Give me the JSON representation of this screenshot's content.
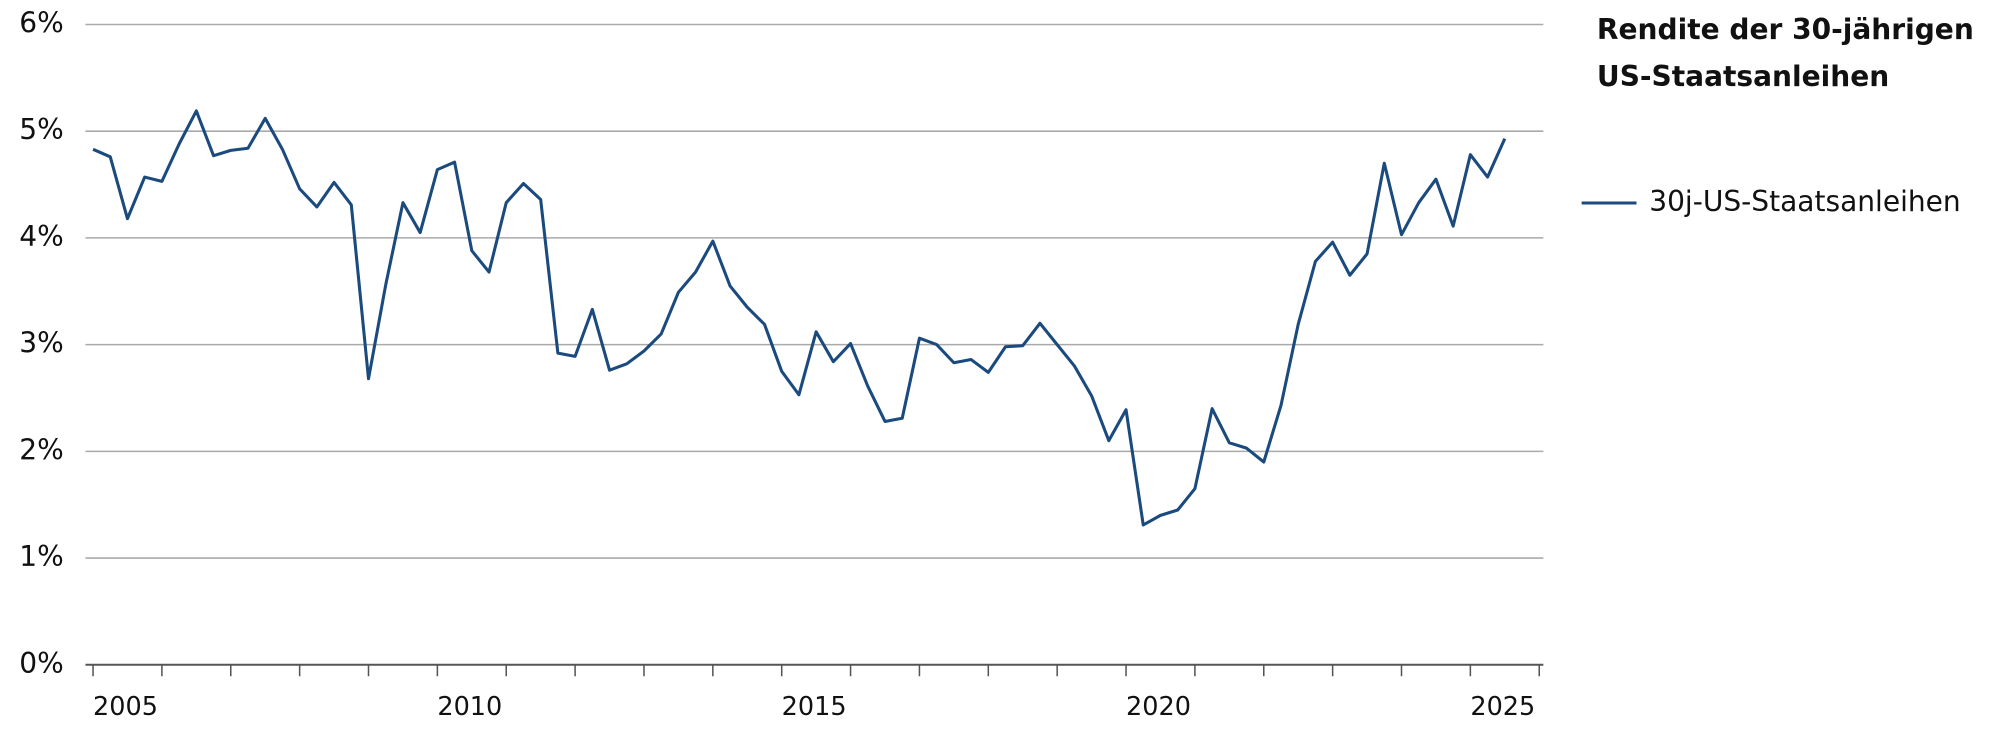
{
  "chart_data": {
    "type": "line",
    "title_lines": [
      "Rendite der 30-jährigen",
      "US-Staatsanleihen"
    ],
    "x": [
      2005,
      2005.25,
      2005.5,
      2005.75,
      2006,
      2006.25,
      2006.5,
      2006.75,
      2007,
      2007.25,
      2007.5,
      2007.75,
      2008,
      2008.25,
      2008.5,
      2008.75,
      2009,
      2009.25,
      2009.5,
      2009.75,
      2010,
      2010.25,
      2010.5,
      2010.75,
      2011,
      2011.25,
      2011.5,
      2011.75,
      2012,
      2012.25,
      2012.5,
      2012.75,
      2013,
      2013.25,
      2013.5,
      2013.75,
      2014,
      2014.25,
      2014.5,
      2014.75,
      2015,
      2015.25,
      2015.5,
      2015.75,
      2016,
      2016.25,
      2016.5,
      2016.75,
      2017,
      2017.25,
      2017.5,
      2017.75,
      2018,
      2018.25,
      2018.5,
      2018.75,
      2019,
      2019.25,
      2019.5,
      2019.75,
      2020,
      2020.25,
      2020.5,
      2020.75,
      2021,
      2021.25,
      2021.5,
      2021.75,
      2022,
      2022.25,
      2022.5,
      2022.75,
      2023,
      2023.25,
      2023.5,
      2023.75,
      2024,
      2024.25,
      2024.5,
      2024.75,
      2025,
      2025.25,
      2025.5
    ],
    "series": [
      {
        "name": "30j-US-Staatsanleihen",
        "color": "#1b4a7e",
        "values": [
          4.83,
          4.76,
          4.18,
          4.57,
          4.53,
          4.88,
          5.19,
          4.77,
          4.82,
          4.84,
          5.12,
          4.83,
          4.46,
          4.29,
          4.52,
          4.31,
          2.68,
          3.56,
          4.33,
          4.05,
          4.64,
          4.71,
          3.88,
          3.68,
          4.33,
          4.51,
          4.36,
          2.92,
          2.89,
          3.33,
          2.76,
          2.82,
          2.94,
          3.1,
          3.49,
          3.68,
          3.97,
          3.55,
          3.35,
          3.19,
          2.75,
          2.53,
          3.12,
          2.84,
          3.01,
          2.61,
          2.28,
          2.31,
          3.06,
          3.0,
          2.83,
          2.86,
          2.74,
          2.98,
          2.99,
          3.2,
          3.0,
          2.8,
          2.52,
          2.1,
          2.39,
          1.31,
          1.4,
          1.45,
          1.65,
          2.4,
          2.08,
          2.03,
          1.9,
          2.43,
          3.19,
          3.78,
          3.96,
          3.65,
          3.85,
          4.7,
          4.03,
          4.33,
          4.55,
          4.11,
          4.78,
          4.57,
          4.93
        ]
      }
    ],
    "xlim": [
      2004.89,
      2026.06
    ],
    "xticks": [
      2005,
      2010,
      2015,
      2020,
      2025
    ],
    "xminorticks": [
      2005,
      2006,
      2007,
      2008,
      2009,
      2010,
      2011,
      2012,
      2013,
      2014,
      2015,
      2016,
      2017,
      2018,
      2019,
      2020,
      2021,
      2022,
      2023,
      2024,
      2025,
      2026
    ],
    "ylim": [
      0,
      6
    ],
    "yticks": [
      {
        "value": 0,
        "label": "0%"
      },
      {
        "value": 1,
        "label": "1%"
      },
      {
        "value": 2,
        "label": "2%"
      },
      {
        "value": 3,
        "label": "3%"
      },
      {
        "value": 4,
        "label": "4%"
      },
      {
        "value": 5,
        "label": "5%"
      },
      {
        "value": 6,
        "label": "6%"
      }
    ],
    "grid": true,
    "legend": "right"
  }
}
